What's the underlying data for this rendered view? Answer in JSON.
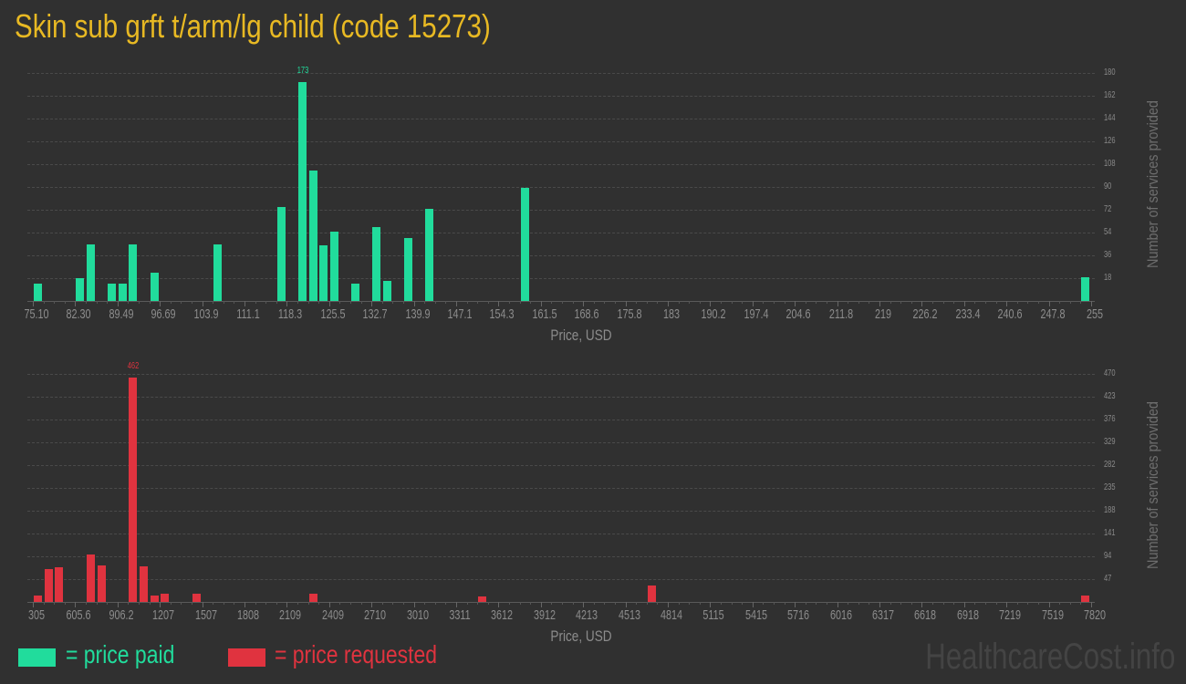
{
  "title": "Skin sub grft t/arm/lg child (code 15273)",
  "colors": {
    "paid": "#21dc9c",
    "requested": "#e0333f",
    "title": "#e8b923"
  },
  "legend": {
    "paid_label": "= price paid",
    "requested_label": "= price requested"
  },
  "watermark": "HealthcareCost.info",
  "chart_data": [
    {
      "type": "bar",
      "title": "Price paid distribution",
      "xlabel": "Price, USD",
      "ylabel": "Number of services provided",
      "color": "#21dc9c",
      "ylim": [
        0,
        180
      ],
      "yticks": [
        18,
        36,
        54,
        72,
        90,
        108,
        126,
        144,
        162,
        180
      ],
      "xticks": [
        "75.10",
        "82.30",
        "89.49",
        "96.69",
        "103.9",
        "111.1",
        "118.3",
        "125.5",
        "132.7",
        "139.9",
        "147.1",
        "154.3",
        "161.5",
        "168.6",
        "175.8",
        "183",
        "190.2",
        "197.4",
        "204.6",
        "211.8",
        "219",
        "226.2",
        "233.4",
        "240.6",
        "247.8",
        "255"
      ],
      "xrange": [
        75.1,
        255
      ],
      "grid": true,
      "peak_label": "173",
      "bars": [
        {
          "x": 75.1,
          "value": 14
        },
        {
          "x": 82.3,
          "value": 18
        },
        {
          "x": 84.1,
          "value": 45
        },
        {
          "x": 87.7,
          "value": 14
        },
        {
          "x": 89.5,
          "value": 14
        },
        {
          "x": 91.3,
          "value": 45
        },
        {
          "x": 94.9,
          "value": 22
        },
        {
          "x": 105.7,
          "value": 45
        },
        {
          "x": 116.5,
          "value": 74
        },
        {
          "x": 120.1,
          "value": 173
        },
        {
          "x": 121.9,
          "value": 103
        },
        {
          "x": 123.7,
          "value": 44
        },
        {
          "x": 125.5,
          "value": 55
        },
        {
          "x": 129.1,
          "value": 14
        },
        {
          "x": 132.7,
          "value": 58
        },
        {
          "x": 134.5,
          "value": 16
        },
        {
          "x": 138.1,
          "value": 50
        },
        {
          "x": 141.7,
          "value": 73
        },
        {
          "x": 157.9,
          "value": 89
        },
        {
          "x": 253.2,
          "value": 19
        }
      ]
    },
    {
      "type": "bar",
      "title": "Price requested distribution",
      "xlabel": "Price, USD",
      "ylabel": "Number of services provided",
      "color": "#e0333f",
      "ylim": [
        0,
        470
      ],
      "yticks": [
        47,
        94,
        141,
        188,
        235,
        282,
        329,
        376,
        423,
        470
      ],
      "xticks": [
        "305",
        "605.6",
        "906.2",
        "1207",
        "1507",
        "1808",
        "2109",
        "2409",
        "2710",
        "3010",
        "3311",
        "3612",
        "3912",
        "4213",
        "4513",
        "4814",
        "5115",
        "5415",
        "5716",
        "6016",
        "6317",
        "6618",
        "6918",
        "7219",
        "7519",
        "7820"
      ],
      "xrange": [
        305,
        7820
      ],
      "grid": true,
      "peak_label": "462",
      "bars": [
        {
          "x": 305,
          "value": 14
        },
        {
          "x": 380,
          "value": 68
        },
        {
          "x": 455,
          "value": 72
        },
        {
          "x": 680,
          "value": 98
        },
        {
          "x": 756,
          "value": 75
        },
        {
          "x": 981,
          "value": 462
        },
        {
          "x": 1056,
          "value": 73
        },
        {
          "x": 1132,
          "value": 14
        },
        {
          "x": 1207,
          "value": 16
        },
        {
          "x": 1432,
          "value": 17
        },
        {
          "x": 2259,
          "value": 17
        },
        {
          "x": 3461,
          "value": 11
        },
        {
          "x": 4664,
          "value": 33
        },
        {
          "x": 7745,
          "value": 14
        }
      ]
    }
  ]
}
